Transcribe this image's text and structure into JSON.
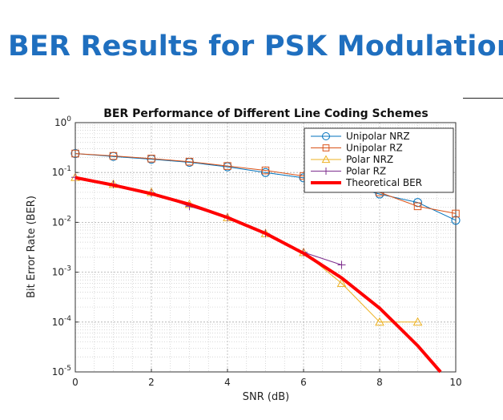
{
  "slide": {
    "title": "BER Results for PSK Modulation"
  },
  "chart_data": {
    "type": "line",
    "title": "BER Performance of Different Line Coding Schemes",
    "xlabel": "SNR (dB)",
    "ylabel": "Bit Error Rate (BER)",
    "xlim": [
      0,
      10
    ],
    "ylim": [
      1e-05,
      1
    ],
    "yscale": "log",
    "grid": true,
    "legend_position": "top-right",
    "x_ticks": [
      "0",
      "2",
      "4",
      "6",
      "8",
      "10"
    ],
    "y_ticks": [
      {
        "base": "10",
        "exp": "0",
        "value": 1
      },
      {
        "base": "10",
        "exp": "-1",
        "value": 0.1
      },
      {
        "base": "10",
        "exp": "-2",
        "value": 0.01
      },
      {
        "base": "10",
        "exp": "-3",
        "value": 0.001
      },
      {
        "base": "10",
        "exp": "-4",
        "value": 0.0001
      },
      {
        "base": "10",
        "exp": "-5",
        "value": 1e-05
      }
    ],
    "series": [
      {
        "name": "Unipolar NRZ",
        "color": "#0072bd",
        "marker": "circle",
        "line_width": 1,
        "x": [
          0,
          1,
          2,
          3,
          4,
          5,
          6,
          7,
          8,
          9,
          10
        ],
        "y": [
          0.24,
          0.21,
          0.185,
          0.16,
          0.13,
          0.1,
          0.078,
          0.058,
          0.037,
          0.025,
          0.011
        ]
      },
      {
        "name": "Unipolar RZ",
        "color": "#d95319",
        "marker": "square",
        "line_width": 1,
        "x": [
          0,
          1,
          2,
          3,
          4,
          5,
          6,
          7,
          8,
          9,
          10
        ],
        "y": [
          0.24,
          0.215,
          0.19,
          0.165,
          0.135,
          0.11,
          0.085,
          0.062,
          0.04,
          0.021,
          0.015
        ]
      },
      {
        "name": "Polar NRZ",
        "color": "#edb120",
        "marker": "triangle",
        "line_width": 1,
        "x": [
          0,
          1,
          2,
          3,
          4,
          5,
          6,
          7,
          8,
          9
        ],
        "y": [
          0.08,
          0.058,
          0.04,
          0.023,
          0.0125,
          0.006,
          0.0025,
          0.0006,
          0.0001,
          0.0001
        ]
      },
      {
        "name": "Polar RZ",
        "color": "#7e2f8e",
        "marker": "plus",
        "line_width": 1,
        "x": [
          0,
          1,
          2,
          3,
          4,
          5,
          6,
          7
        ],
        "y": [
          0.08,
          0.058,
          0.039,
          0.021,
          0.0125,
          0.006,
          0.0025,
          0.0014
        ]
      },
      {
        "name": "Theoretical BER",
        "color": "#ff0000",
        "marker": "none",
        "line_width": 4,
        "x": [
          0,
          1,
          2,
          3,
          4,
          5,
          6,
          7,
          8,
          9,
          9.6
        ],
        "y": [
          0.079,
          0.056,
          0.0375,
          0.023,
          0.0125,
          0.006,
          0.0024,
          0.00077,
          0.00019,
          3.36e-05,
          1e-05
        ]
      }
    ]
  }
}
